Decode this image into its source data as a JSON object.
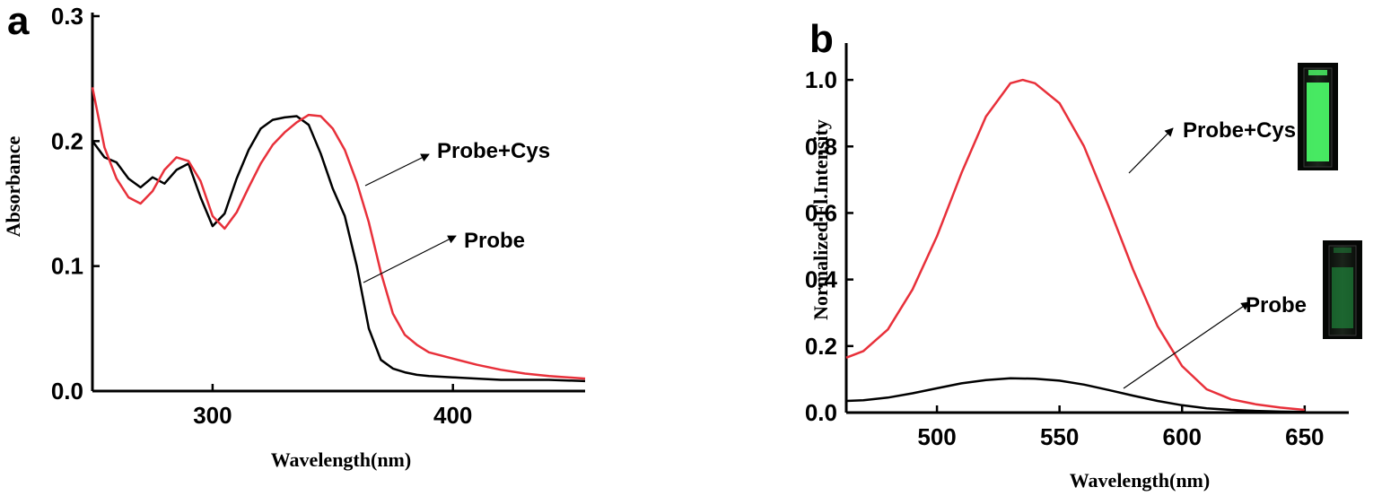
{
  "chart_data": [
    {
      "type": "line",
      "panel_label": "a",
      "xlabel": "Wavelength(nm)",
      "ylabel": "Absorbance",
      "xlim": [
        250,
        455
      ],
      "ylim": [
        0,
        0.3
      ],
      "x_ticks": [
        300,
        400
      ],
      "y_ticks": [
        0.0,
        0.1,
        0.2,
        0.3
      ],
      "y_tick_labels": [
        "0.0",
        "0.1",
        "0.2",
        "0.3"
      ],
      "grid": false,
      "series": [
        {
          "name": "Probe",
          "color": "#000000",
          "points": [
            [
              250,
              0.2
            ],
            [
              255,
              0.187
            ],
            [
              260,
              0.183
            ],
            [
              265,
              0.17
            ],
            [
              270,
              0.163
            ],
            [
              275,
              0.171
            ],
            [
              280,
              0.166
            ],
            [
              285,
              0.177
            ],
            [
              290,
              0.182
            ],
            [
              295,
              0.155
            ],
            [
              300,
              0.132
            ],
            [
              305,
              0.142
            ],
            [
              310,
              0.17
            ],
            [
              315,
              0.193
            ],
            [
              320,
              0.21
            ],
            [
              325,
              0.217
            ],
            [
              330,
              0.219
            ],
            [
              335,
              0.22
            ],
            [
              340,
              0.213
            ],
            [
              345,
              0.19
            ],
            [
              350,
              0.162
            ],
            [
              355,
              0.14
            ],
            [
              360,
              0.1
            ],
            [
              365,
              0.05
            ],
            [
              370,
              0.025
            ],
            [
              375,
              0.018
            ],
            [
              380,
              0.015
            ],
            [
              385,
              0.013
            ],
            [
              390,
              0.012
            ],
            [
              400,
              0.011
            ],
            [
              410,
              0.01
            ],
            [
              420,
              0.009
            ],
            [
              430,
              0.009
            ],
            [
              440,
              0.009
            ],
            [
              455,
              0.008
            ]
          ]
        },
        {
          "name": "Probe+Cys",
          "color": "#e8303a",
          "points": [
            [
              250,
              0.243
            ],
            [
              255,
              0.195
            ],
            [
              260,
              0.17
            ],
            [
              265,
              0.155
            ],
            [
              270,
              0.15
            ],
            [
              275,
              0.16
            ],
            [
              280,
              0.177
            ],
            [
              285,
              0.187
            ],
            [
              290,
              0.184
            ],
            [
              295,
              0.168
            ],
            [
              300,
              0.14
            ],
            [
              305,
              0.13
            ],
            [
              310,
              0.143
            ],
            [
              315,
              0.163
            ],
            [
              320,
              0.182
            ],
            [
              325,
              0.197
            ],
            [
              330,
              0.207
            ],
            [
              335,
              0.215
            ],
            [
              340,
              0.221
            ],
            [
              345,
              0.22
            ],
            [
              350,
              0.21
            ],
            [
              355,
              0.193
            ],
            [
              360,
              0.167
            ],
            [
              365,
              0.135
            ],
            [
              370,
              0.095
            ],
            [
              375,
              0.062
            ],
            [
              380,
              0.045
            ],
            [
              385,
              0.037
            ],
            [
              390,
              0.031
            ],
            [
              400,
              0.026
            ],
            [
              410,
              0.021
            ],
            [
              420,
              0.017
            ],
            [
              430,
              0.014
            ],
            [
              440,
              0.012
            ],
            [
              455,
              0.01
            ]
          ]
        }
      ],
      "annotations": [
        {
          "text": "Probe+Cys",
          "series": "Probe+Cys"
        },
        {
          "text": "Probe",
          "series": "Probe"
        }
      ]
    },
    {
      "type": "line",
      "panel_label": "b",
      "xlabel": "Wavelength(nm)",
      "ylabel": "Normalized Fl.Intensity",
      "xlim": [
        463,
        668
      ],
      "ylim": [
        0,
        1.1
      ],
      "x_ticks": [
        500,
        550,
        600,
        650
      ],
      "y_ticks": [
        0.0,
        0.2,
        0.4,
        0.6,
        0.8,
        1.0
      ],
      "y_tick_labels": [
        "0.0",
        "0.2",
        "0.4",
        "0.6",
        "0.8",
        "1.0"
      ],
      "grid": false,
      "series": [
        {
          "name": "Probe+Cys",
          "color": "#e8303a",
          "points": [
            [
              463,
              0.165
            ],
            [
              470,
              0.185
            ],
            [
              480,
              0.25
            ],
            [
              490,
              0.37
            ],
            [
              500,
              0.53
            ],
            [
              510,
              0.72
            ],
            [
              520,
              0.89
            ],
            [
              530,
              0.99
            ],
            [
              535,
              1.0
            ],
            [
              540,
              0.99
            ],
            [
              550,
              0.93
            ],
            [
              560,
              0.8
            ],
            [
              570,
              0.62
            ],
            [
              580,
              0.43
            ],
            [
              590,
              0.26
            ],
            [
              600,
              0.14
            ],
            [
              610,
              0.07
            ],
            [
              620,
              0.04
            ],
            [
              630,
              0.025
            ],
            [
              640,
              0.015
            ],
            [
              650,
              0.008
            ]
          ]
        },
        {
          "name": "Probe",
          "color": "#000000",
          "points": [
            [
              463,
              0.035
            ],
            [
              470,
              0.037
            ],
            [
              480,
              0.045
            ],
            [
              490,
              0.058
            ],
            [
              500,
              0.073
            ],
            [
              510,
              0.088
            ],
            [
              520,
              0.098
            ],
            [
              530,
              0.103
            ],
            [
              540,
              0.102
            ],
            [
              550,
              0.096
            ],
            [
              560,
              0.084
            ],
            [
              570,
              0.068
            ],
            [
              580,
              0.051
            ],
            [
              590,
              0.035
            ],
            [
              600,
              0.022
            ],
            [
              610,
              0.013
            ],
            [
              620,
              0.008
            ],
            [
              630,
              0.005
            ],
            [
              640,
              0.003
            ],
            [
              650,
              0.002
            ]
          ]
        }
      ],
      "annotations": [
        {
          "text": "Probe+Cys",
          "series": "Probe+Cys"
        },
        {
          "text": "Probe",
          "series": "Probe"
        }
      ],
      "insets": [
        {
          "depicts": "cuvette bright green fluorescence",
          "series": "Probe+Cys",
          "glow_color": "#4dff6a"
        },
        {
          "depicts": "cuvette faint green fluorescence",
          "series": "Probe",
          "glow_color": "#1f8a3c"
        }
      ]
    }
  ]
}
